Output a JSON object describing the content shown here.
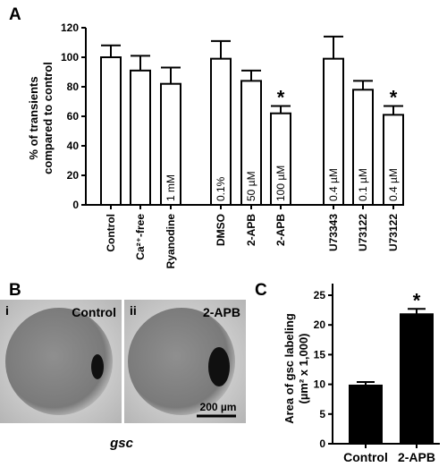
{
  "panels": {
    "a": "A",
    "b": "B",
    "c": "C"
  },
  "chart_data": [
    {
      "type": "bar",
      "ylabel_line1": "% of transients",
      "ylabel_line2": "compared to control",
      "ylim": [
        0,
        120
      ],
      "yticks": [
        "0",
        "20",
        "40",
        "60",
        "80",
        "100",
        "120"
      ],
      "categories": [
        "Control",
        "Ca²⁺-free",
        "Ryanodine",
        "DMSO",
        "2-APB",
        "2-APB",
        "U73343",
        "U73122",
        "U73122"
      ],
      "values": [
        100,
        91,
        82,
        99,
        84,
        62,
        99,
        78,
        61
      ],
      "errors": [
        8,
        10,
        11,
        12,
        7,
        5,
        15,
        6,
        6
      ],
      "bar_labels": [
        "",
        "",
        "1 mM",
        "0.1%",
        "50 µM",
        "100 µM",
        "0.4 µM",
        "0.1 µM",
        "0.4 µM"
      ],
      "significance": [
        "",
        "",
        "",
        "",
        "",
        "*",
        "",
        "",
        "*"
      ],
      "fill": "#ffffff",
      "grid": false
    },
    {
      "type": "bar",
      "ylabel_line1": "Area of gsc labeling",
      "ylabel_line2": "(µm² x 1,000)",
      "ylim": [
        0,
        25
      ],
      "yticks": [
        "0",
        "5",
        "10",
        "15",
        "20",
        "25"
      ],
      "categories": [
        "Control",
        "2-APB"
      ],
      "values": [
        9.8,
        21.8
      ],
      "errors": [
        0.6,
        0.9
      ],
      "significance": [
        "",
        "*"
      ],
      "fill": "#000000",
      "grid": false
    }
  ],
  "images": {
    "left_index": "i",
    "left_label": "Control",
    "right_index": "ii",
    "right_label": "2-APB",
    "scalebar_label": "200 µm",
    "caption": "gsc"
  }
}
